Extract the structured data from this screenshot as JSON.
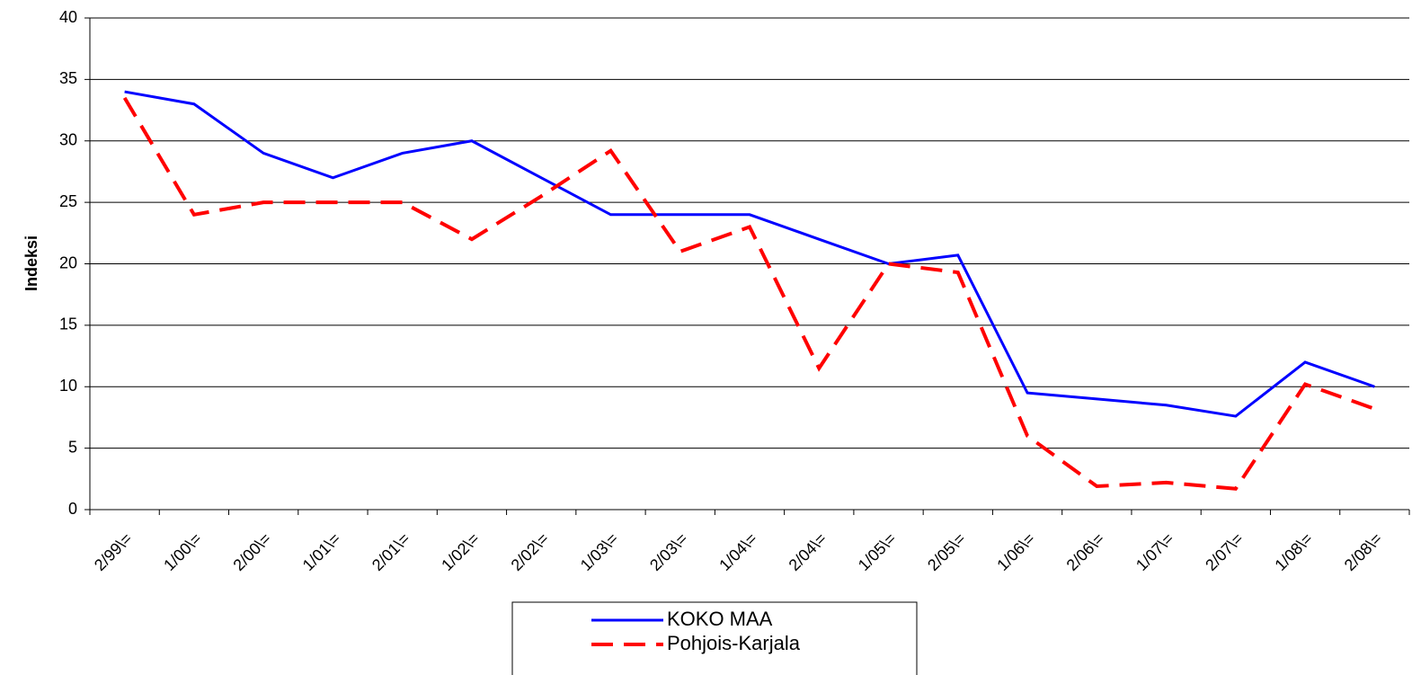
{
  "chart_data": {
    "type": "line",
    "ylabel": "Indeksi",
    "categories": [
      "2/99\\=",
      "1/00\\=",
      "2/00\\=",
      "1/01\\=",
      "2/01\\=",
      "1/02\\=",
      "2/02\\=",
      "1/03\\=",
      "2/03\\=",
      "1/04\\=",
      "2/04\\=",
      "1/05\\=",
      "2/05\\=",
      "1/06\\=",
      "2/06\\=",
      "1/07\\=",
      "2/07\\=",
      "1/08\\=",
      "2/08\\="
    ],
    "series": [
      {
        "name": "KOKO MAA",
        "color": "#0000ff",
        "dash": false,
        "values": [
          34,
          33,
          29,
          27,
          29,
          30,
          27,
          24,
          24,
          24,
          22,
          20,
          20.7,
          9.5,
          9,
          8.5,
          7.6,
          12,
          10
        ]
      },
      {
        "name": "Pohjois-Karjala",
        "color": "#ff0000",
        "dash": true,
        "values": [
          33.5,
          24,
          25,
          25,
          25,
          22,
          25.5,
          29.2,
          21,
          23,
          11.5,
          20,
          19.3,
          6,
          1.9,
          2.2,
          1.7,
          10.2,
          8.2
        ]
      }
    ],
    "ylim": [
      0,
      40
    ],
    "yticks": [
      0,
      5,
      10,
      15,
      20,
      25,
      30,
      35,
      40
    ],
    "grid": true,
    "legend": "bottom"
  }
}
